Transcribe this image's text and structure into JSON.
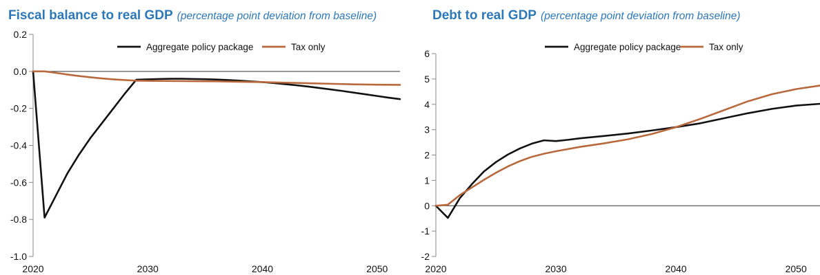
{
  "charts": [
    {
      "title": "Fiscal balance to real GDP",
      "subtitle": "(percentage point deviation from baseline)"
    },
    {
      "title": "Debt to real GDP",
      "subtitle": "(percentage point deviation from baseline)"
    }
  ],
  "chart_data": [
    {
      "type": "line",
      "title": "Fiscal balance to real GDP",
      "subtitle": "(percentage point deviation from baseline)",
      "xlabel": "",
      "ylabel": "",
      "xlim": [
        2020,
        2052
      ],
      "ylim": [
        -1.0,
        0.2
      ],
      "x_ticks": [
        2020,
        2030,
        2040,
        2050
      ],
      "y_ticks": [
        0.2,
        0.0,
        -0.2,
        -0.4,
        -0.6,
        -0.8,
        -1.0
      ],
      "y_tick_labels": [
        "0.2",
        "0.0",
        "-0.2",
        "-0.4",
        "-0.6",
        "-0.8",
        "-1.0"
      ],
      "zero_line": true,
      "legend_position": "top-center",
      "series": [
        {
          "name": "Aggregate policy package",
          "color": "#111111",
          "points": [
            [
              2020,
              0.0
            ],
            [
              2021,
              -0.79
            ],
            [
              2022,
              -0.67
            ],
            [
              2023,
              -0.55
            ],
            [
              2024,
              -0.45
            ],
            [
              2025,
              -0.36
            ],
            [
              2026,
              -0.28
            ],
            [
              2027,
              -0.2
            ],
            [
              2028,
              -0.12
            ],
            [
              2029,
              -0.045
            ],
            [
              2030,
              -0.043
            ],
            [
              2031,
              -0.041
            ],
            [
              2032,
              -0.04
            ],
            [
              2033,
              -0.04
            ],
            [
              2034,
              -0.041
            ],
            [
              2035,
              -0.042
            ],
            [
              2036,
              -0.044
            ],
            [
              2037,
              -0.047
            ],
            [
              2038,
              -0.05
            ],
            [
              2039,
              -0.054
            ],
            [
              2040,
              -0.058
            ],
            [
              2041,
              -0.063
            ],
            [
              2042,
              -0.069
            ],
            [
              2043,
              -0.075
            ],
            [
              2044,
              -0.082
            ],
            [
              2045,
              -0.09
            ],
            [
              2046,
              -0.098
            ],
            [
              2047,
              -0.106
            ],
            [
              2048,
              -0.115
            ],
            [
              2049,
              -0.124
            ],
            [
              2050,
              -0.133
            ],
            [
              2051,
              -0.142
            ],
            [
              2052,
              -0.15
            ]
          ]
        },
        {
          "name": "Tax only",
          "color": "#b9683c",
          "points": [
            [
              2020,
              0.0
            ],
            [
              2021,
              0.0
            ],
            [
              2022,
              -0.008
            ],
            [
              2023,
              -0.017
            ],
            [
              2024,
              -0.025
            ],
            [
              2025,
              -0.032
            ],
            [
              2026,
              -0.038
            ],
            [
              2027,
              -0.043
            ],
            [
              2028,
              -0.047
            ],
            [
              2029,
              -0.05
            ],
            [
              2030,
              -0.051
            ],
            [
              2032,
              -0.052
            ],
            [
              2034,
              -0.053
            ],
            [
              2036,
              -0.054
            ],
            [
              2038,
              -0.056
            ],
            [
              2040,
              -0.058
            ],
            [
              2042,
              -0.061
            ],
            [
              2044,
              -0.064
            ],
            [
              2046,
              -0.067
            ],
            [
              2048,
              -0.07
            ],
            [
              2050,
              -0.072
            ],
            [
              2052,
              -0.073
            ]
          ]
        }
      ]
    },
    {
      "type": "line",
      "title": "Debt to real GDP",
      "subtitle": "(percentage point deviation from baseline)",
      "xlabel": "",
      "ylabel": "",
      "xlim": [
        2020,
        2052
      ],
      "ylim": [
        -2,
        6
      ],
      "x_ticks": [
        2020,
        2030,
        2040,
        2050
      ],
      "y_ticks": [
        6,
        5,
        4,
        3,
        2,
        1,
        0,
        -1,
        -2
      ],
      "y_tick_labels": [
        "6",
        "5",
        "4",
        "3",
        "2",
        "1",
        "0",
        "-1",
        "-2"
      ],
      "zero_line": true,
      "legend_position": "top-center",
      "series": [
        {
          "name": "Aggregate policy package",
          "color": "#111111",
          "points": [
            [
              2020,
              0.0
            ],
            [
              2021,
              -0.48
            ],
            [
              2022,
              0.3
            ],
            [
              2023,
              0.85
            ],
            [
              2024,
              1.35
            ],
            [
              2025,
              1.72
            ],
            [
              2026,
              2.02
            ],
            [
              2027,
              2.26
            ],
            [
              2028,
              2.45
            ],
            [
              2029,
              2.58
            ],
            [
              2030,
              2.55
            ],
            [
              2031,
              2.6
            ],
            [
              2032,
              2.66
            ],
            [
              2034,
              2.75
            ],
            [
              2036,
              2.85
            ],
            [
              2038,
              2.97
            ],
            [
              2040,
              3.1
            ],
            [
              2042,
              3.25
            ],
            [
              2044,
              3.45
            ],
            [
              2046,
              3.65
            ],
            [
              2048,
              3.82
            ],
            [
              2050,
              3.95
            ],
            [
              2052,
              4.02
            ]
          ]
        },
        {
          "name": "Tax only",
          "color": "#b9683c",
          "points": [
            [
              2020,
              0.0
            ],
            [
              2021,
              0.04
            ],
            [
              2022,
              0.42
            ],
            [
              2023,
              0.72
            ],
            [
              2024,
              1.02
            ],
            [
              2025,
              1.3
            ],
            [
              2026,
              1.55
            ],
            [
              2027,
              1.76
            ],
            [
              2028,
              1.93
            ],
            [
              2029,
              2.05
            ],
            [
              2030,
              2.15
            ],
            [
              2032,
              2.32
            ],
            [
              2034,
              2.46
            ],
            [
              2036,
              2.62
            ],
            [
              2038,
              2.83
            ],
            [
              2040,
              3.1
            ],
            [
              2042,
              3.42
            ],
            [
              2044,
              3.77
            ],
            [
              2046,
              4.12
            ],
            [
              2048,
              4.4
            ],
            [
              2050,
              4.6
            ],
            [
              2052,
              4.74
            ]
          ]
        }
      ]
    }
  ]
}
